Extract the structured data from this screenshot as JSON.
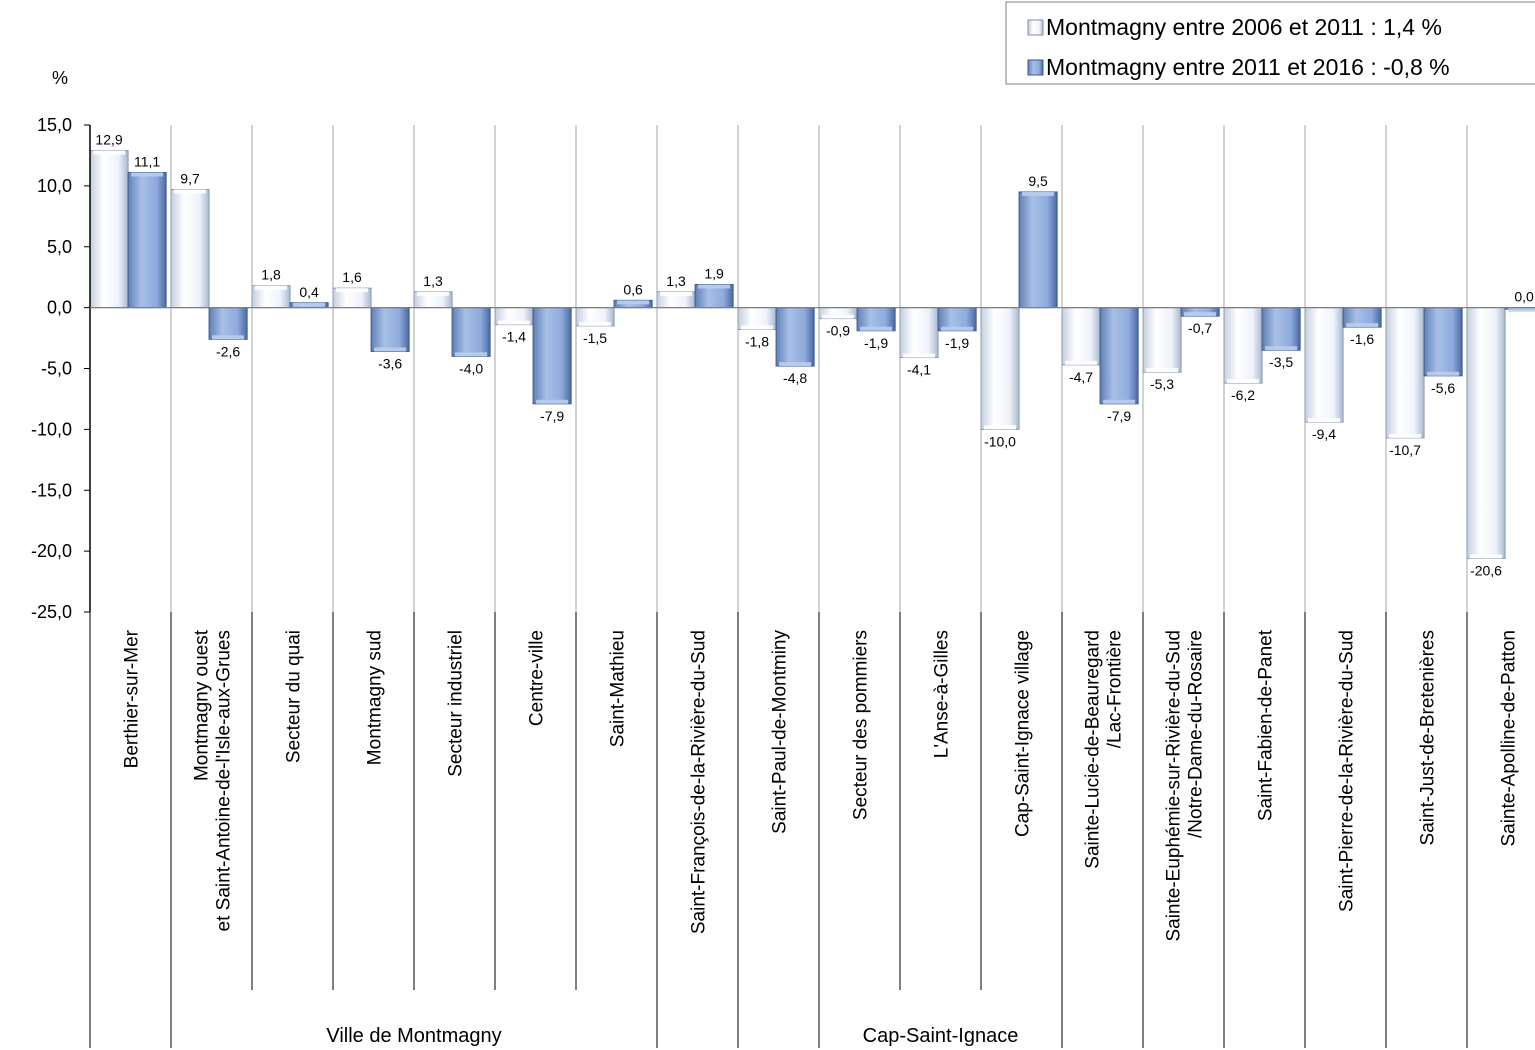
{
  "chart_data": {
    "type": "bar",
    "ylabel": "%",
    "ylim": [
      -25,
      15
    ],
    "yticks": [
      15,
      10,
      5,
      0,
      -5,
      -10,
      -15,
      -20,
      -25
    ],
    "ytick_labels": [
      "15,0",
      "10,0",
      "5,0",
      "0,0",
      "-5,0",
      "-10,0",
      "-15,0",
      "-20,0",
      "-25,0"
    ],
    "legend_position": "top-right",
    "categories": [
      [
        "Berthier-sur-Mer"
      ],
      [
        "Montmagny ouest",
        "et Saint-Antoine-de-l'Isle-aux-Grues"
      ],
      [
        "Secteur du quai"
      ],
      [
        "Montmagny sud"
      ],
      [
        "Secteur industriel"
      ],
      [
        "Centre-ville"
      ],
      [
        "Saint-Mathieu"
      ],
      [
        "Saint-François-de-la-Rivière-du-Sud"
      ],
      [
        "Saint-Paul-de-Montminy"
      ],
      [
        "Secteur des pommiers"
      ],
      [
        "L'Anse-à-Gilles"
      ],
      [
        "Cap-Saint-Ignace village"
      ],
      [
        "Sainte-Lucie-de-Beauregard",
        "/Lac-Frontière"
      ],
      [
        "Sainte-Euphémie-sur-Rivière-du-Sud",
        "/Notre-Dame-du-Rosaire"
      ],
      [
        "Saint-Fabien-de-Panet"
      ],
      [
        "Saint-Pierre-de-la-Rivière-du-Sud"
      ],
      [
        "Saint-Just-de-Bretenières"
      ],
      [
        "Sainte-Apolline-de-Patton"
      ]
    ],
    "series": [
      {
        "name": "Montmagny entre 2006 et 2011 : 1,4 %",
        "color": "#eef3fb",
        "values": [
          12.9,
          9.7,
          1.8,
          1.6,
          1.3,
          -1.4,
          -1.5,
          1.3,
          -1.8,
          -0.9,
          -4.1,
          -10.0,
          -4.7,
          -5.3,
          -6.2,
          -9.4,
          -10.7,
          -20.6
        ],
        "labels": [
          "12,9",
          "9,7",
          "1,8",
          "1,6",
          "1,3",
          "-1,4",
          "-1,5",
          "1,3",
          "-1,8",
          "-0,9",
          "-4,1",
          "-10,0",
          "-4,7",
          "-5,3",
          "-6,2",
          "-9,4",
          "-10,7",
          "-20,6"
        ]
      },
      {
        "name": "Montmagny entre 2011 et 2016 : -0,8 %",
        "color": "#8eaadc",
        "values": [
          11.1,
          -2.6,
          0.4,
          -3.6,
          -4.0,
          -7.9,
          0.6,
          1.9,
          -4.8,
          -1.9,
          -1.9,
          9.5,
          -7.9,
          -0.7,
          -3.5,
          -1.6,
          -5.6,
          0.0
        ],
        "labels": [
          "11,1",
          "-2,6",
          "0,4",
          "-3,6",
          "-4,0",
          "-7,9",
          "0,6",
          "1,9",
          "-4,8",
          "-1,9",
          "-1,9",
          "9,5",
          "-7,9",
          "-0,7",
          "-3,5",
          "-1,6",
          "-5,6",
          "0,0"
        ]
      }
    ],
    "groups": [
      {
        "label": "",
        "start": 0,
        "end": 0
      },
      {
        "label": "Ville de Montmagny",
        "start": 1,
        "end": 6
      },
      {
        "label": "",
        "start": 7,
        "end": 7
      },
      {
        "label": "",
        "start": 8,
        "end": 8
      },
      {
        "label": "Cap-Saint-Ignace",
        "start": 9,
        "end": 11
      },
      {
        "label": "",
        "start": 12,
        "end": 12
      },
      {
        "label": "",
        "start": 13,
        "end": 13
      },
      {
        "label": "",
        "start": 14,
        "end": 14
      },
      {
        "label": "",
        "start": 15,
        "end": 15
      },
      {
        "label": "",
        "start": 16,
        "end": 16
      },
      {
        "label": "",
        "start": 17,
        "end": 17
      }
    ]
  }
}
